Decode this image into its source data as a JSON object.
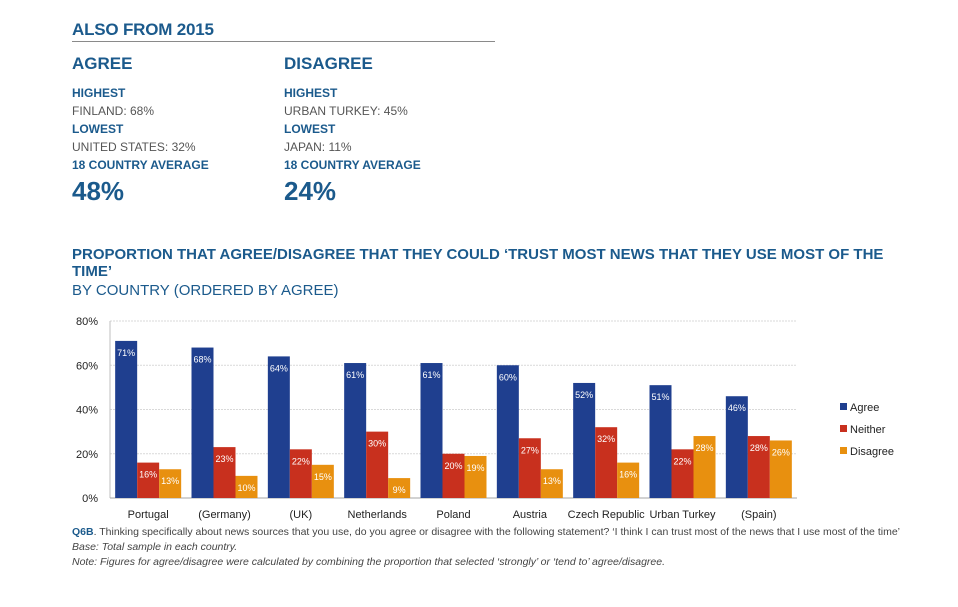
{
  "header": {
    "title": "ALSO FROM 2015"
  },
  "agree": {
    "title": "AGREE",
    "highest_label": "HIGHEST",
    "highest_value": "FINLAND: 68%",
    "lowest_label": "LOWEST",
    "lowest_value": "UNITED STATES: 32%",
    "average_label": "18 COUNTRY AVERAGE",
    "average_value": "48%"
  },
  "disagree": {
    "title": "DISAGREE",
    "highest_label": "HIGHEST",
    "highest_value": "URBAN TURKEY: 45%",
    "lowest_label": "LOWEST",
    "lowest_value": "JAPAN: 11%",
    "average_label": "18 COUNTRY AVERAGE",
    "average_value": "24%"
  },
  "chart_title": "PROPORTION THAT AGREE/DISAGREE THAT THEY COULD ‘TRUST MOST NEWS THAT THEY USE MOST OF THE TIME’",
  "chart_subtitle": "BY COUNTRY (ORDERED BY AGREE)",
  "chart_data": {
    "type": "bar",
    "title": "PROPORTION THAT AGREE/DISAGREE THAT THEY COULD ‘TRUST MOST NEWS THAT THEY USE MOST OF THE TIME’",
    "subtitle": "BY COUNTRY (ORDERED BY AGREE)",
    "xlabel": "",
    "ylabel": "",
    "ylim": [
      0,
      80
    ],
    "yticks": [
      0,
      20,
      40,
      60,
      80
    ],
    "ytick_labels": [
      "0%",
      "20%",
      "40%",
      "60%",
      "80%"
    ],
    "grid": true,
    "legend_position": "right",
    "categories": [
      "Portugal",
      "(Germany)",
      "(UK)",
      "Netherlands",
      "Poland",
      "Austria",
      "Czech Republic",
      "Urban Turkey",
      "(Spain)"
    ],
    "series": [
      {
        "name": "Agree",
        "color": "#1f3f8f",
        "values": [
          71,
          68,
          64,
          61,
          61,
          60,
          52,
          51,
          46
        ]
      },
      {
        "name": "Neither",
        "color": "#c8301e",
        "values": [
          16,
          23,
          22,
          30,
          20,
          27,
          32,
          22,
          28
        ]
      },
      {
        "name": "Disagree",
        "color": "#e8900f",
        "values": [
          13,
          10,
          15,
          9,
          19,
          13,
          16,
          28,
          26
        ]
      }
    ]
  },
  "notes": {
    "question_code": "Q6B",
    "question_text": ". Thinking specifically about news sources that you use, do you agree or disagree with the following statement? ‘I think I can trust most of the news that I use most of the time’",
    "base": "Base: Total sample in each country.",
    "note": "Note: Figures for agree/disagree were calculated by combining the proportion that selected ‘strongly’ or ‘tend to’ agree/disagree."
  }
}
